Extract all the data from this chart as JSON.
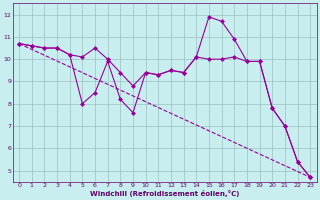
{
  "xlabel": "Windchill (Refroidissement éolien,°C)",
  "bg_color": "#c8eef0",
  "line_color": "#990099",
  "grid_color": "#9dbfc0",
  "axis_label_color": "#660066",
  "tick_label_color": "#660066",
  "xlim": [
    -0.5,
    23.5
  ],
  "ylim": [
    4.5,
    12.5
  ],
  "xticks": [
    0,
    1,
    2,
    3,
    4,
    5,
    6,
    7,
    8,
    9,
    10,
    11,
    12,
    13,
    14,
    15,
    16,
    17,
    18,
    19,
    20,
    21,
    22,
    23
  ],
  "yticks": [
    5,
    6,
    7,
    8,
    9,
    10,
    11,
    12
  ],
  "series": [
    {
      "x": [
        0,
        1,
        2,
        3,
        4,
        5,
        6,
        7,
        8,
        9,
        10,
        11,
        12,
        13,
        14,
        15,
        16,
        17,
        18,
        19,
        20,
        21,
        22,
        23
      ],
      "y": [
        10.7,
        10.6,
        10.5,
        10.5,
        10.2,
        10.1,
        10.5,
        10.0,
        9.4,
        8.8,
        9.4,
        9.3,
        9.5,
        9.4,
        10.1,
        10.0,
        10.0,
        10.1,
        9.9,
        9.9,
        7.8,
        7.0,
        5.4,
        4.7
      ],
      "style": "-",
      "marker": "D",
      "markersize": 2.0
    },
    {
      "x": [
        0,
        1,
        2,
        3,
        4,
        5,
        6,
        7,
        8,
        9,
        10,
        11,
        12,
        13,
        14,
        15,
        16,
        17,
        18,
        19,
        20,
        21,
        22,
        23
      ],
      "y": [
        10.7,
        10.6,
        10.5,
        10.5,
        10.2,
        8.0,
        8.5,
        9.9,
        8.2,
        7.6,
        9.4,
        9.3,
        9.5,
        9.4,
        10.1,
        11.9,
        11.7,
        10.9,
        9.9,
        9.9,
        7.8,
        7.0,
        5.4,
        4.7
      ],
      "style": "-",
      "marker": "D",
      "markersize": 2.0
    },
    {
      "x": [
        0,
        23
      ],
      "y": [
        10.7,
        4.7
      ],
      "style": "--",
      "marker": "D",
      "markersize": 2.0
    }
  ]
}
